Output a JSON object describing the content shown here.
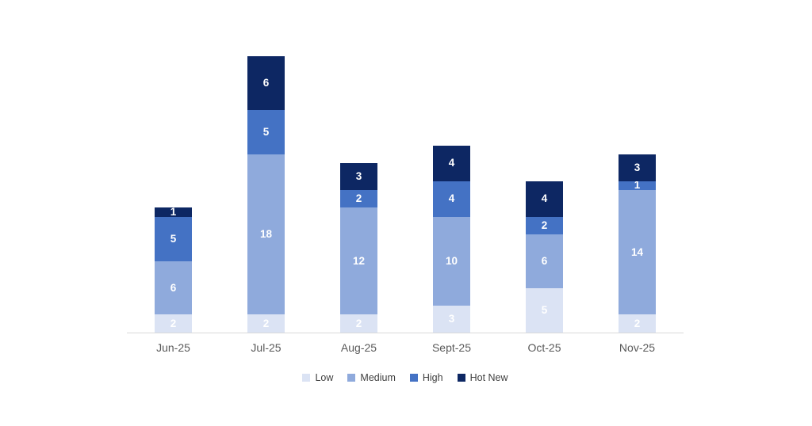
{
  "chart_data": {
    "type": "bar",
    "stacked": true,
    "title": "",
    "xlabel": "",
    "ylabel": "",
    "categories": [
      "Jun-25",
      "Jul-25",
      "Aug-25",
      "Sept-25",
      "Oct-25",
      "Nov-25"
    ],
    "series": [
      {
        "name": "Low",
        "color": "#dbe3f4",
        "values": [
          2,
          2,
          2,
          3,
          5,
          2
        ]
      },
      {
        "name": "Medium",
        "color": "#8faadc",
        "values": [
          6,
          18,
          12,
          10,
          6,
          14
        ]
      },
      {
        "name": "High",
        "color": "#4472c4",
        "values": [
          5,
          5,
          2,
          4,
          2,
          1
        ]
      },
      {
        "name": "Hot New",
        "color": "#0d2763",
        "values": [
          1,
          6,
          3,
          4,
          4,
          3
        ]
      }
    ],
    "totals": [
      14,
      31,
      19,
      21,
      17,
      20
    ],
    "ylim": [
      0,
      31
    ],
    "grid": false,
    "y_axis_visible": false,
    "legend_position": "bottom",
    "value_label_color": "#ffffff",
    "axis_line_color": "#d9d9d9",
    "tick_label_color": "#595959",
    "legend_text_color": "#404040",
    "background_color": "#ffffff"
  }
}
